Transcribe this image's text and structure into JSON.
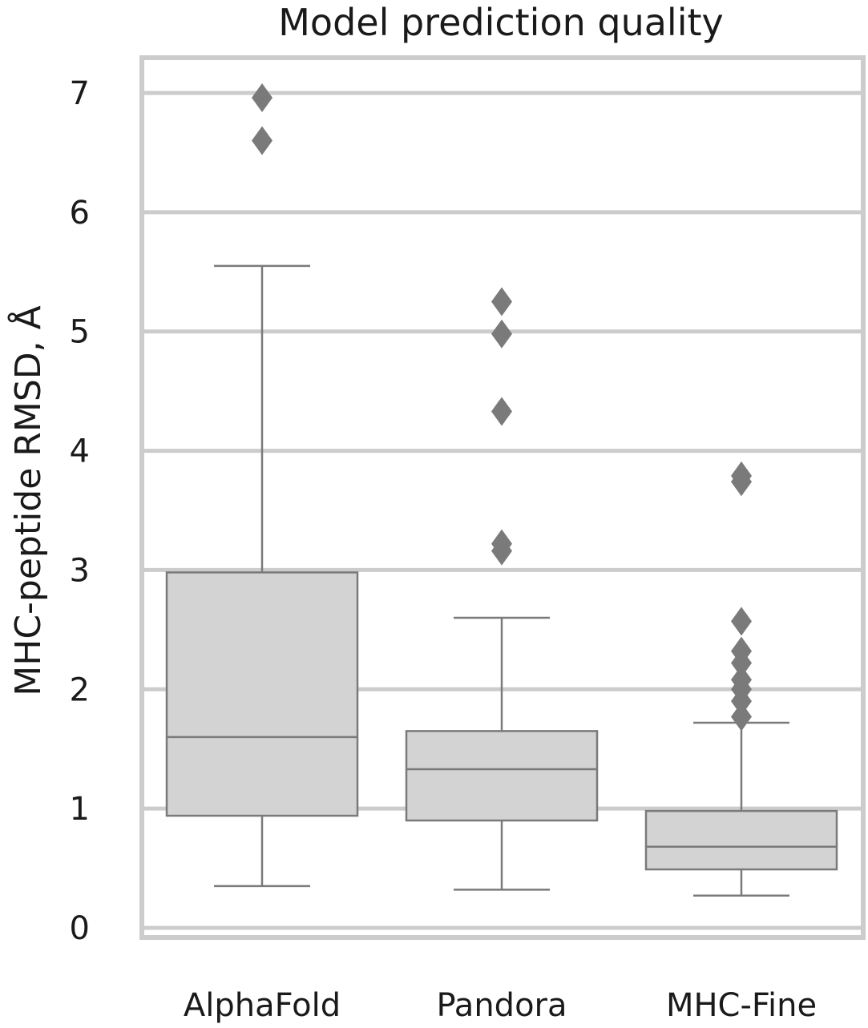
{
  "chart_data": {
    "type": "box",
    "title": "Model prediction quality",
    "xlabel": "",
    "ylabel": "MHC-peptide RMSD, Å",
    "ylim": [
      -0.1,
      7.3
    ],
    "yticks": [
      0,
      1,
      2,
      3,
      4,
      5,
      6,
      7
    ],
    "grid": true,
    "categories": [
      "AlphaFold",
      "Pandora",
      "MHC-Fine"
    ],
    "boxes": [
      {
        "category": "AlphaFold",
        "whisker_low": 0.35,
        "q1": 0.94,
        "median": 1.6,
        "q3": 2.98,
        "whisker_high": 5.55,
        "outliers": [
          6.6,
          6.96
        ]
      },
      {
        "category": "Pandora",
        "whisker_low": 0.32,
        "q1": 0.9,
        "median": 1.33,
        "q3": 1.65,
        "whisker_high": 2.6,
        "outliers": [
          3.16,
          3.22,
          4.33,
          4.98,
          5.25
        ]
      },
      {
        "category": "MHC-Fine",
        "whisker_low": 0.27,
        "q1": 0.49,
        "median": 0.68,
        "q3": 0.98,
        "whisker_high": 1.72,
        "outliers": [
          1.77,
          1.9,
          2.0,
          2.08,
          2.22,
          2.32,
          2.57,
          3.74,
          3.79
        ]
      }
    ],
    "colors": {
      "box_fill": "#d3d3d3",
      "line": "#7a7a7a",
      "outlier": "#7a7a7a",
      "grid": "#cccccc",
      "frame": "#cccccc"
    }
  }
}
